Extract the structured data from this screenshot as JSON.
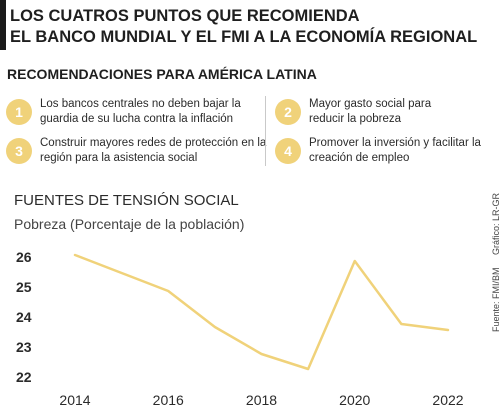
{
  "header": {
    "title_line1": "LOS CUATROS PUNTOS QUE RECOMIENDA",
    "title_line2": "EL BANCO MUNDIAL Y EL FMI A LA ECONOMÍA REGIONAL",
    "subtitle": "RECOMENDACIONES PARA AMÉRICA LATINA"
  },
  "recommendations": [
    {
      "num": "1",
      "line1": "Los bancos centrales no deben bajar la",
      "line2": "guardia de su lucha contra la inflación"
    },
    {
      "num": "2",
      "line1": "Mayor gasto social para",
      "line2": "reducir la pobreza"
    },
    {
      "num": "3",
      "line1": "Construir mayores redes de protección en la",
      "line2": "región para la asistencia social"
    },
    {
      "num": "4",
      "line1": "Promover la inversión y facilitar la",
      "line2": "creación de empleo"
    }
  ],
  "section_title": "FUENTES DE TENSIÓN SOCIAL",
  "credits": {
    "source": "Fuente: FMI/BM",
    "graphic": "Gráfico: LR-GR"
  },
  "colors": {
    "line": "#f0d27a",
    "accent": "#f0d27a",
    "text": "#2b2b2b"
  },
  "chart_data": {
    "type": "line",
    "title": "Pobreza (Porcentaje de la población)",
    "x": [
      2014,
      2015,
      2016,
      2017,
      2018,
      2019,
      2020,
      2021,
      2022
    ],
    "series": [
      {
        "values": [
          26.1,
          25.5,
          24.9,
          23.7,
          22.8,
          22.3,
          25.9,
          23.8,
          23.6
        ]
      }
    ],
    "y_ticks": [
      22,
      23,
      24,
      25,
      26
    ],
    "x_ticks": [
      "2014",
      "2016",
      "2018",
      "2020",
      "2022"
    ],
    "ylim": [
      22,
      26.5
    ],
    "grid": false
  }
}
